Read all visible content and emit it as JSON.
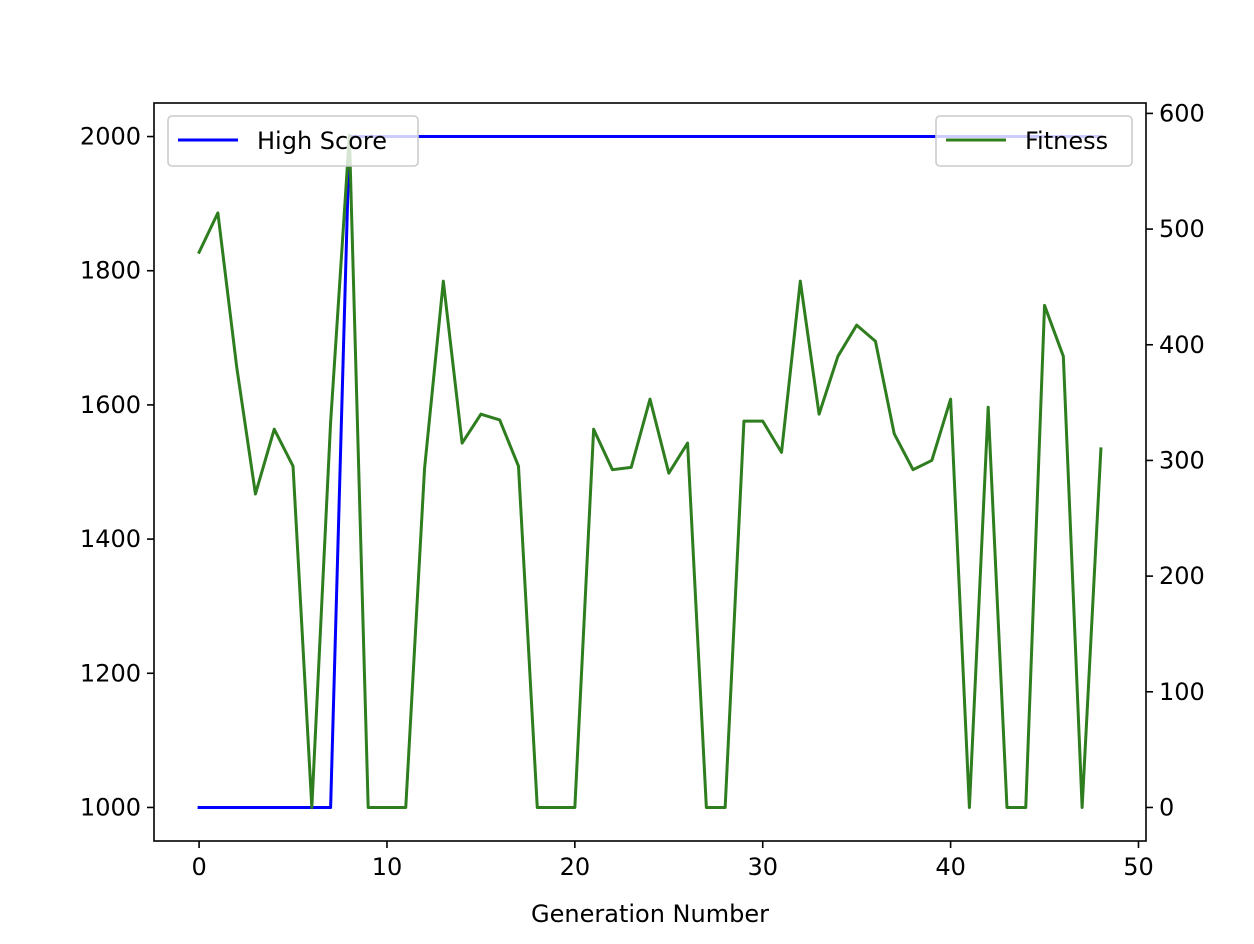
{
  "chart_data": {
    "type": "line",
    "xlabel": "Generation Number",
    "xlim": [
      -2.4,
      50.4
    ],
    "x_ticks": [
      0,
      10,
      20,
      30,
      40,
      50
    ],
    "left_axis": {
      "ylim": [
        950,
        2050
      ],
      "ticks": [
        1000,
        1200,
        1400,
        1600,
        1800,
        2000
      ]
    },
    "right_axis": {
      "ylim": [
        -29,
        609
      ],
      "ticks": [
        0,
        100,
        200,
        300,
        400,
        500,
        600
      ]
    },
    "grid": false,
    "series": [
      {
        "name": "High Score",
        "axis": "left",
        "color": "#0000ff",
        "legend_position": "upper-left",
        "x": [
          0,
          1,
          2,
          3,
          4,
          5,
          6,
          7,
          8,
          9,
          10,
          11,
          12,
          13,
          14,
          15,
          16,
          17,
          18,
          19,
          20,
          21,
          22,
          23,
          24,
          25,
          26,
          27,
          28,
          29,
          30,
          31,
          32,
          33,
          34,
          35,
          36,
          37,
          38,
          39,
          40,
          41,
          42,
          43,
          44,
          45,
          46,
          47,
          48
        ],
        "values": [
          1000,
          1000,
          1000,
          1000,
          1000,
          1000,
          1000,
          1000,
          2000,
          2000,
          2000,
          2000,
          2000,
          2000,
          2000,
          2000,
          2000,
          2000,
          2000,
          2000,
          2000,
          2000,
          2000,
          2000,
          2000,
          2000,
          2000,
          2000,
          2000,
          2000,
          2000,
          2000,
          2000,
          2000,
          2000,
          2000,
          2000,
          2000,
          2000,
          2000,
          2000,
          2000,
          2000,
          2000,
          2000,
          2000,
          2000,
          2000,
          2000
        ]
      },
      {
        "name": "Fitness",
        "axis": "right",
        "color": "#2e7d1e",
        "legend_position": "upper-right",
        "x": [
          0,
          1,
          2,
          3,
          4,
          5,
          6,
          7,
          8,
          9,
          10,
          11,
          12,
          13,
          14,
          15,
          16,
          17,
          18,
          19,
          20,
          21,
          22,
          23,
          24,
          25,
          26,
          27,
          28,
          29,
          30,
          31,
          32,
          33,
          34,
          35,
          36,
          37,
          38,
          39,
          40,
          41,
          42,
          43,
          44,
          45,
          46,
          47,
          48
        ],
        "values": [
          480,
          514,
          381,
          271,
          327,
          295,
          0,
          333,
          581,
          0,
          0,
          0,
          293,
          455,
          315,
          340,
          335,
          295,
          0,
          0,
          0,
          327,
          292,
          294,
          353,
          289,
          315,
          0,
          0,
          334,
          334,
          307,
          455,
          340,
          390,
          417,
          403,
          323,
          292,
          300,
          353,
          0,
          346,
          0,
          0,
          434,
          390,
          0,
          310
        ]
      }
    ]
  }
}
